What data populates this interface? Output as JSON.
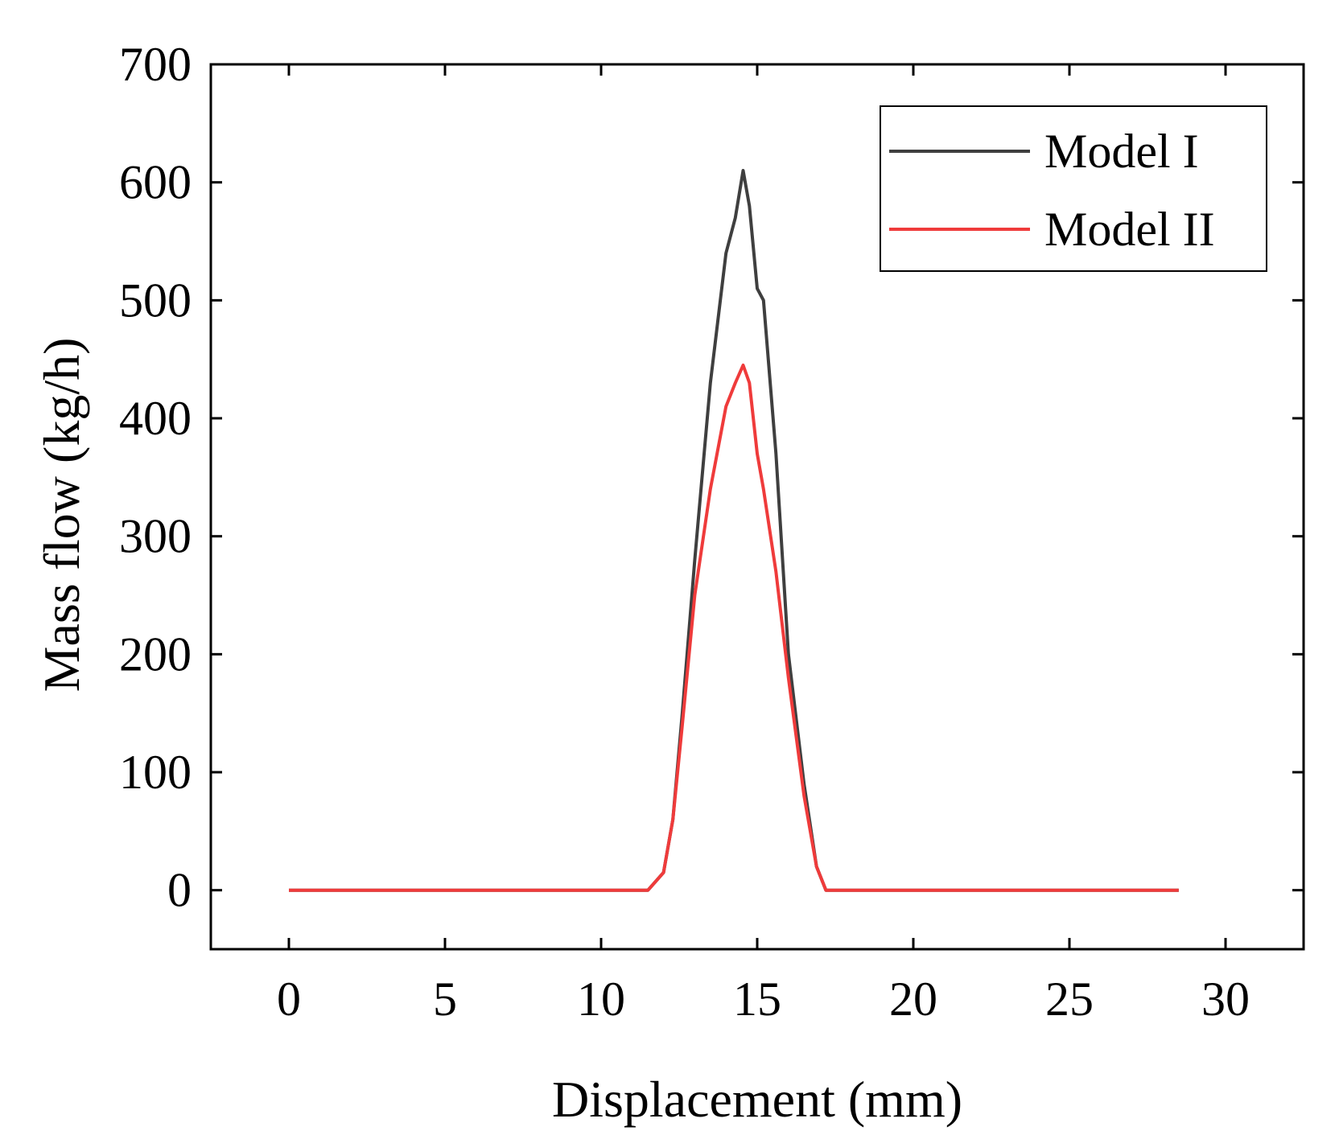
{
  "chart_data": {
    "type": "line",
    "title": "",
    "xlabel": "Displacement (mm)",
    "ylabel": "Mass flow (kg/h)",
    "xlim": [
      -2.5,
      32.5
    ],
    "ylim": [
      -50,
      700
    ],
    "xticks": [
      0,
      5,
      10,
      15,
      20,
      25,
      30
    ],
    "yticks": [
      0,
      100,
      200,
      300,
      400,
      500,
      600,
      700
    ],
    "xtick_labels": [
      "0",
      "5",
      "10",
      "15",
      "20",
      "25",
      "30"
    ],
    "ytick_labels": [
      "0",
      "100",
      "200",
      "300",
      "400",
      "500",
      "600",
      "700"
    ],
    "legend_position": "top-right",
    "series": [
      {
        "name": "Model I",
        "color": "#3f3f3f",
        "x": [
          0,
          6,
          6.8,
          11.2,
          11.5,
          12.0,
          12.3,
          12.6,
          13.0,
          13.5,
          14.0,
          14.3,
          14.55,
          14.75,
          15.0,
          15.2,
          15.6,
          16.0,
          16.5,
          16.9,
          17.2,
          18.5,
          19.0,
          27.2,
          27.6,
          28.5
        ],
        "y": [
          0,
          0,
          0,
          0,
          0,
          15,
          60,
          150,
          280,
          430,
          540,
          570,
          610,
          580,
          510,
          500,
          370,
          200,
          90,
          20,
          0,
          0,
          0,
          0,
          0,
          0
        ]
      },
      {
        "name": "Model II",
        "color": "#ef3b3b",
        "x": [
          0,
          6,
          6.8,
          11.2,
          11.5,
          12.0,
          12.3,
          12.6,
          13.0,
          13.5,
          14.0,
          14.3,
          14.55,
          14.75,
          15.0,
          15.2,
          15.6,
          16.0,
          16.5,
          16.9,
          17.2,
          18.5,
          19.0,
          27.2,
          27.6,
          28.5
        ],
        "y": [
          0,
          0,
          0,
          0,
          0,
          15,
          60,
          140,
          250,
          340,
          410,
          430,
          445,
          430,
          370,
          340,
          270,
          180,
          80,
          20,
          0,
          0,
          0,
          0,
          0,
          0
        ]
      }
    ]
  }
}
